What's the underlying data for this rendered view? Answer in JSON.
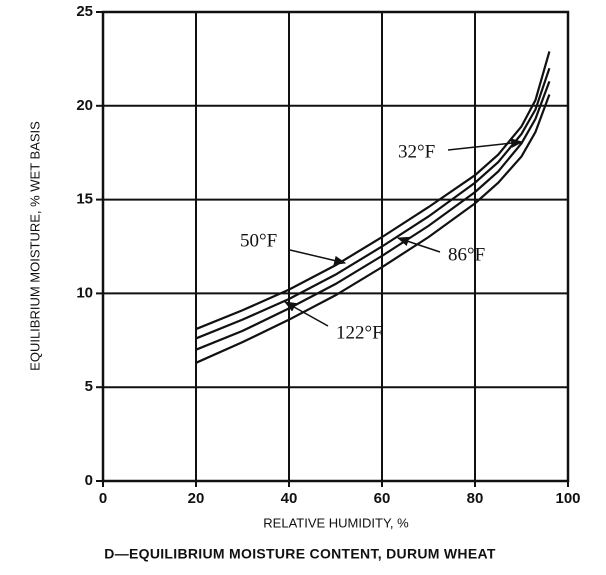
{
  "chart_data": {
    "type": "line",
    "title": "D—EQUILIBRIUM MOISTURE CONTENT, DURUM WHEAT",
    "x_label": "RELATIVE HUMIDITY, %",
    "y_label": "EQUILIBRIUM MOISTURE, % WET BASIS",
    "x": [
      20,
      30,
      40,
      50,
      60,
      70,
      80,
      85,
      90,
      93,
      96
    ],
    "series": [
      {
        "name": "32°F",
        "color": "#111111",
        "values": [
          8.1,
          9.1,
          10.2,
          11.5,
          13.0,
          14.6,
          16.3,
          17.4,
          18.9,
          20.3,
          22.9
        ]
      },
      {
        "name": "50°F",
        "color": "#111111",
        "values": [
          7.6,
          8.6,
          9.7,
          11.0,
          12.5,
          14.1,
          15.9,
          17.0,
          18.5,
          19.8,
          22.0
        ]
      },
      {
        "name": "86°F",
        "color": "#111111",
        "values": [
          7.0,
          8.0,
          9.2,
          10.5,
          12.0,
          13.6,
          15.4,
          16.5,
          18.0,
          19.3,
          21.3
        ]
      },
      {
        "name": "122°F",
        "color": "#111111",
        "values": [
          6.3,
          7.4,
          8.6,
          9.9,
          11.4,
          13.0,
          14.8,
          15.9,
          17.3,
          18.6,
          20.6
        ]
      }
    ],
    "xlim": [
      0,
      100
    ],
    "xticks": [
      0,
      20,
      40,
      60,
      80,
      100
    ],
    "ylim": [
      0,
      25
    ],
    "yticks": [
      0,
      5,
      10,
      15,
      20,
      25
    ],
    "grid": true
  }
}
